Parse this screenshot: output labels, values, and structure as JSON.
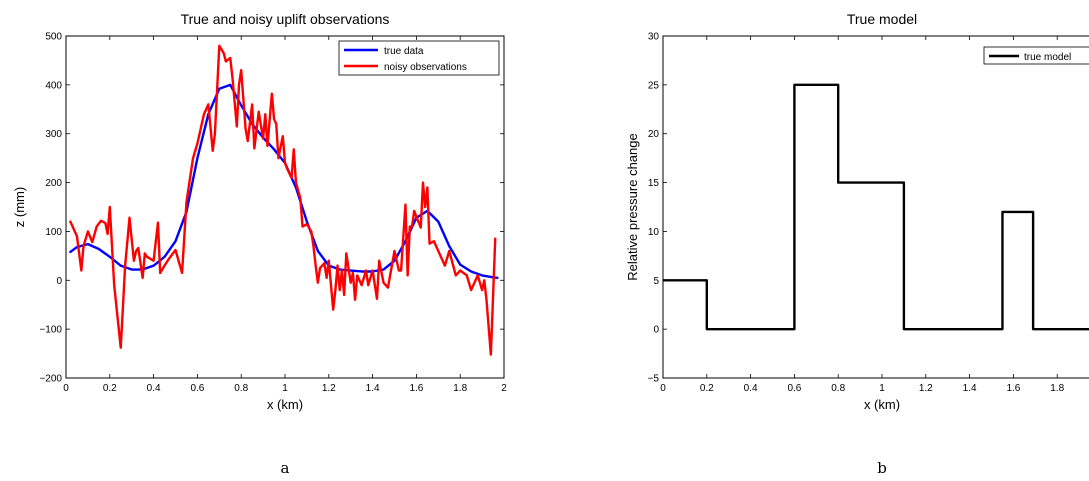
{
  "chart_data": [
    {
      "type": "line",
      "title": "True and noisy uplift observations",
      "xlabel": "x (km)",
      "ylabel": "z (mm)",
      "xlim": [
        0,
        2
      ],
      "ylim": [
        -200,
        500
      ],
      "xticks": [
        0,
        0.2,
        0.4,
        0.6,
        0.8,
        1,
        1.2,
        1.4,
        1.6,
        1.8,
        2
      ],
      "xtick_labels": [
        "0",
        "0.2",
        "0.4",
        "0.6",
        "0.8",
        "1",
        "1.2",
        "1.4",
        "1.6",
        "1.8",
        "2"
      ],
      "yticks": [
        -200,
        -100,
        0,
        100,
        200,
        300,
        400,
        500
      ],
      "ytick_labels": [
        "−200",
        "−100",
        "0",
        "100",
        "200",
        "300",
        "400",
        "500"
      ],
      "legend_position": "top-right",
      "caption": "a",
      "series": [
        {
          "name": "true data",
          "color": "#0000ff",
          "x": [
            0.02,
            0.05,
            0.1,
            0.15,
            0.2,
            0.25,
            0.3,
            0.35,
            0.4,
            0.45,
            0.5,
            0.55,
            0.6,
            0.65,
            0.7,
            0.75,
            0.8,
            0.85,
            0.9,
            0.95,
            1.0,
            1.05,
            1.1,
            1.15,
            1.2,
            1.25,
            1.3,
            1.35,
            1.4,
            1.45,
            1.5,
            1.55,
            1.6,
            1.65,
            1.7,
            1.75,
            1.8,
            1.85,
            1.9,
            1.95,
            1.97
          ],
          "y": [
            58,
            68,
            74,
            64,
            48,
            30,
            22,
            22,
            30,
            48,
            80,
            140,
            250,
            340,
            392,
            400,
            358,
            320,
            292,
            268,
            240,
            190,
            120,
            60,
            30,
            22,
            20,
            18,
            18,
            22,
            40,
            80,
            128,
            142,
            120,
            70,
            32,
            18,
            10,
            6,
            5
          ]
        },
        {
          "name": "noisy observations",
          "color": "#ff0000",
          "x": [
            0.02,
            0.05,
            0.07,
            0.08,
            0.1,
            0.12,
            0.14,
            0.16,
            0.18,
            0.19,
            0.2,
            0.22,
            0.25,
            0.27,
            0.29,
            0.31,
            0.32,
            0.33,
            0.35,
            0.36,
            0.37,
            0.4,
            0.42,
            0.43,
            0.45,
            0.47,
            0.5,
            0.53,
            0.55,
            0.58,
            0.6,
            0.63,
            0.65,
            0.67,
            0.68,
            0.7,
            0.72,
            0.73,
            0.75,
            0.76,
            0.78,
            0.79,
            0.8,
            0.82,
            0.83,
            0.85,
            0.86,
            0.88,
            0.9,
            0.91,
            0.92,
            0.94,
            0.95,
            0.96,
            0.97,
            0.99,
            1.0,
            1.01,
            1.03,
            1.04,
            1.05,
            1.07,
            1.08,
            1.1,
            1.12,
            1.13,
            1.14,
            1.15,
            1.16,
            1.18,
            1.19,
            1.2,
            1.22,
            1.23,
            1.24,
            1.25,
            1.26,
            1.27,
            1.28,
            1.3,
            1.31,
            1.32,
            1.33,
            1.35,
            1.37,
            1.38,
            1.4,
            1.42,
            1.43,
            1.45,
            1.47,
            1.5,
            1.52,
            1.53,
            1.55,
            1.56,
            1.57,
            1.58,
            1.59,
            1.6,
            1.62,
            1.63,
            1.64,
            1.65,
            1.66,
            1.68,
            1.7,
            1.72,
            1.73,
            1.75,
            1.78,
            1.8,
            1.83,
            1.85,
            1.87,
            1.88,
            1.9,
            1.91,
            1.92,
            1.94,
            1.96
          ],
          "y": [
            120,
            90,
            20,
            70,
            100,
            78,
            110,
            122,
            117,
            95,
            150,
            -10,
            -138,
            30,
            128,
            40,
            60,
            66,
            5,
            55,
            48,
            40,
            118,
            15,
            30,
            44,
            62,
            15,
            160,
            250,
            280,
            340,
            360,
            265,
            300,
            480,
            465,
            448,
            455,
            415,
            315,
            400,
            430,
            310,
            285,
            360,
            270,
            345,
            290,
            340,
            275,
            382,
            330,
            320,
            250,
            295,
            240,
            228,
            210,
            268,
            200,
            168,
            110,
            115,
            100,
            70,
            30,
            -5,
            25,
            35,
            5,
            40,
            -60,
            -20,
            30,
            -20,
            20,
            -30,
            55,
            -5,
            15,
            -40,
            10,
            -10,
            20,
            -10,
            20,
            -38,
            40,
            -5,
            -15,
            60,
            20,
            20,
            155,
            10,
            110,
            110,
            142,
            130,
            108,
            200,
            150,
            190,
            75,
            80,
            60,
            40,
            30,
            60,
            10,
            20,
            10,
            -20,
            0,
            10,
            -20,
            0,
            -40,
            -152,
            85
          ]
        }
      ]
    },
    {
      "type": "line",
      "title": "True model",
      "xlabel": "x (km)",
      "ylabel": "Relative pressure change",
      "xlim": [
        0,
        2
      ],
      "ylim": [
        -5,
        30
      ],
      "xticks": [
        0,
        0.2,
        0.4,
        0.6,
        0.8,
        1,
        1.2,
        1.4,
        1.6,
        1.8
      ],
      "xtick_labels": [
        "0",
        "0.2",
        "0.4",
        "0.6",
        "0.8",
        "1",
        "1.2",
        "1.4",
        "1.6",
        "1.8"
      ],
      "yticks": [
        -5,
        0,
        5,
        10,
        15,
        20,
        25,
        30
      ],
      "ytick_labels": [
        "−5",
        "0",
        "5",
        "10",
        "15",
        "20",
        "25",
        "30"
      ],
      "legend_position": "top-right",
      "caption": "b",
      "series": [
        {
          "name": "true model",
          "color": "#000000",
          "x": [
            0,
            0.2,
            0.2,
            0.6,
            0.6,
            0.8,
            0.8,
            1.1,
            1.1,
            1.55,
            1.55,
            1.69,
            1.69,
            2.0
          ],
          "y": [
            5,
            5,
            0,
            0,
            25,
            25,
            15,
            15,
            0,
            0,
            12,
            12,
            0,
            0
          ]
        }
      ]
    }
  ]
}
